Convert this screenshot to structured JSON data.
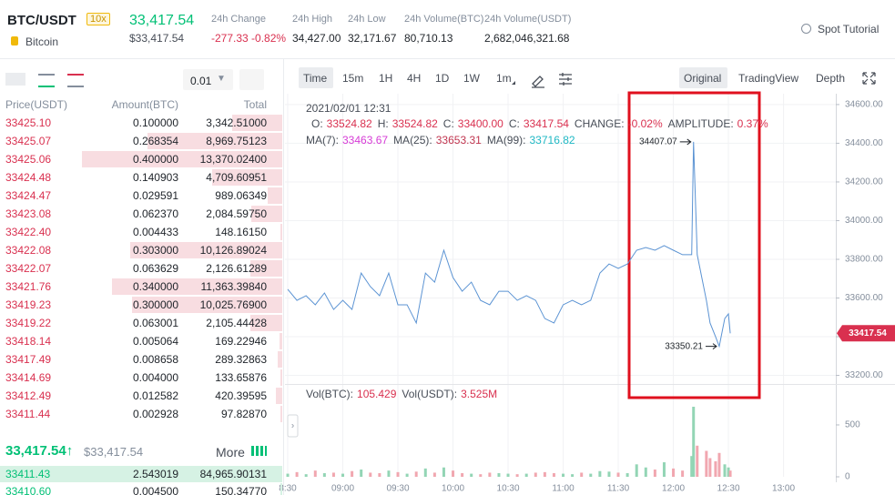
{
  "header": {
    "pair": "BTC/USDT",
    "leverage": "10x",
    "name": "Bitcoin",
    "price": "33,417.54",
    "price_usd": "$33,417.54",
    "stats": [
      {
        "label": "24h Change",
        "value": "-277.33 -0.82%"
      },
      {
        "label": "24h High",
        "value": "34,427.00"
      },
      {
        "label": "24h Low",
        "value": "32,171.67"
      },
      {
        "label": "24h Volume(BTC)",
        "value": "80,710.13"
      },
      {
        "label": "24h Volume(USDT)",
        "value": "2,682,046,321.68"
      }
    ],
    "tutorial": "Spot Tutorial"
  },
  "order_book": {
    "step": "0.01",
    "columns": [
      "Price(USDT)",
      "Amount(BTC)",
      "Total"
    ],
    "asks": [
      [
        "33425.10",
        "0.100000",
        "3,342.51000"
      ],
      [
        "33425.07",
        "0.268354",
        "8,969.75123"
      ],
      [
        "33425.06",
        "0.400000",
        "13,370.02400"
      ],
      [
        "33424.48",
        "0.140903",
        "4,709.60951"
      ],
      [
        "33424.47",
        "0.029591",
        "989.06349"
      ],
      [
        "33423.08",
        "0.062370",
        "2,084.59750"
      ],
      [
        "33422.40",
        "0.004433",
        "148.16150"
      ],
      [
        "33422.08",
        "0.303000",
        "10,126.89024"
      ],
      [
        "33422.07",
        "0.063629",
        "2,126.61289"
      ],
      [
        "33421.76",
        "0.340000",
        "11,363.39840"
      ],
      [
        "33419.23",
        "0.300000",
        "10,025.76900"
      ],
      [
        "33419.22",
        "0.063001",
        "2,105.44428"
      ],
      [
        "33418.14",
        "0.005064",
        "169.22946"
      ],
      [
        "33417.49",
        "0.008658",
        "289.32863"
      ],
      [
        "33414.69",
        "0.004000",
        "133.65876"
      ],
      [
        "33412.49",
        "0.012582",
        "420.39595"
      ],
      [
        "33411.44",
        "0.002928",
        "97.82870"
      ]
    ],
    "last_price": "33,417.54↑",
    "last_price_usd": "$33,417.54",
    "more": "More",
    "bids": [
      [
        "33411.43",
        "2.543019",
        "84,965.90131"
      ],
      [
        "33410.60",
        "0.004500",
        "150.34770"
      ]
    ]
  },
  "chart_toolbar": {
    "intervals": [
      "Time",
      "15m",
      "1H",
      "4H",
      "1D",
      "1W",
      "1m"
    ],
    "views": [
      "Original",
      "TradingView",
      "Depth"
    ]
  },
  "chart_info": {
    "time": "2021/02/01 12:31",
    "fields": [
      {
        "label": "O:",
        "value": "33524.82"
      },
      {
        "label": "H:",
        "value": "33524.82"
      },
      {
        "label": "C:",
        "value": "33400.00"
      },
      {
        "label": "C:",
        "value": "33417.54"
      },
      {
        "label": "CHANGE:",
        "value": "-0.02%"
      },
      {
        "label": "AMPLITUDE:",
        "value": "0.37%"
      }
    ],
    "ma": [
      {
        "label": "MA(7):",
        "value": "33463.67",
        "color": "#d63bd6"
      },
      {
        "label": "MA(25):",
        "value": "33653.31",
        "color": "#c0354f"
      },
      {
        "label": "MA(99):",
        "value": "33716.82",
        "color": "#1fb8c4"
      }
    ],
    "volume": [
      {
        "label": "Vol(BTC):",
        "value": "105.429"
      },
      {
        "label": "Vol(USDT):",
        "value": "3.525M"
      }
    ]
  },
  "chart_data": {
    "type": "line",
    "grid": true,
    "x": [
      510,
      515,
      520,
      525,
      530,
      535,
      540,
      545,
      550,
      555,
      560,
      565,
      570,
      575,
      580,
      585,
      590,
      595,
      600,
      605,
      610,
      615,
      620,
      625,
      630,
      635,
      640,
      645,
      650,
      655,
      660,
      665,
      670,
      675,
      680,
      685,
      690,
      695,
      700,
      705,
      710,
      715,
      720,
      725,
      730,
      731,
      733,
      738,
      740,
      743,
      745,
      748,
      750,
      751
    ],
    "xlim": [
      508.5,
      807
    ],
    "xticks": [
      {
        "value": 510,
        "label": "8:30"
      },
      {
        "value": 540,
        "label": "09:00"
      },
      {
        "value": 570,
        "label": "09:30"
      },
      {
        "value": 600,
        "label": "10:00"
      },
      {
        "value": 630,
        "label": "10:30"
      },
      {
        "value": 660,
        "label": "11:00"
      },
      {
        "value": 690,
        "label": "11:30"
      },
      {
        "value": 720,
        "label": "12:00"
      },
      {
        "value": 750,
        "label": "12:30"
      },
      {
        "value": 780,
        "label": "13:00"
      }
    ],
    "ylim": [
      33165,
      34656
    ],
    "yticks": [
      {
        "value": 33200,
        "label": "33200.00"
      },
      {
        "value": 33400,
        "label": "33400.00"
      },
      {
        "value": 33600,
        "label": "33600.00"
      },
      {
        "value": 33800,
        "label": "33800.00"
      },
      {
        "value": 34000,
        "label": "34000.00"
      },
      {
        "value": 34200,
        "label": "34200.00"
      },
      {
        "value": 34400,
        "label": "34400.00"
      },
      {
        "value": 34600,
        "label": "34600.00"
      }
    ],
    "y2lim": [
      0,
      868
    ],
    "y2ticks": [
      0,
      500
    ],
    "series": [
      {
        "color": "#5b93d3",
        "values": [
          33645,
          33588,
          33612,
          33565,
          33626,
          33541,
          33588,
          33541,
          33729,
          33659,
          33612,
          33729,
          33565,
          33565,
          33471,
          33729,
          33682,
          33847,
          33706,
          33635,
          33682,
          33588,
          33565,
          33635,
          33635,
          33588,
          33612,
          33588,
          33494,
          33471,
          33565,
          33588,
          33565,
          33588,
          33729,
          33776,
          33753,
          33776,
          33847,
          33861,
          33847,
          33871,
          33847,
          33824,
          33824,
          34407.07,
          33824,
          33588,
          33471,
          33400,
          33350.21,
          33494,
          33518,
          33417.54
        ]
      },
      {
        "axis": "y2",
        "color": "#f1a7b0",
        "up_color": "#93d5b5",
        "values": [
          30,
          45,
          25,
          60,
          35,
          40,
          30,
          55,
          70,
          40,
          35,
          60,
          45,
          30,
          50,
          80,
          40,
          90,
          60,
          35,
          30,
          25,
          40,
          35,
          30,
          25,
          30,
          40,
          45,
          35,
          30,
          25,
          40,
          30,
          55,
          50,
          40,
          35,
          120,
          90,
          70,
          140,
          80,
          60,
          200,
          675,
          300,
          250,
          180,
          150,
          230,
          120,
          90,
          60
        ]
      }
    ],
    "annotations": [
      34407.07,
      33350.21
    ],
    "last_price": 33417.54,
    "last_price_color": "#d9304f"
  }
}
